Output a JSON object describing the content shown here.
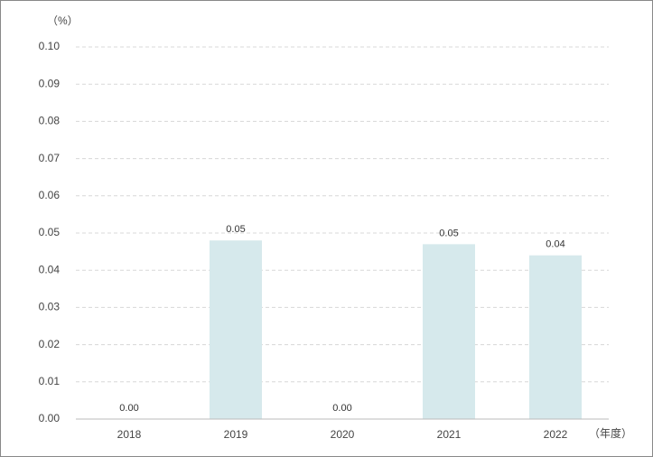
{
  "chart_data": {
    "type": "bar",
    "y_label": "（%）",
    "x_label": "（年度）",
    "categories": [
      "2018",
      "2019",
      "2020",
      "2021",
      "2022"
    ],
    "values": [
      0,
      0.048,
      0,
      0.047,
      0.044
    ],
    "value_labels": [
      "0.00",
      "0.05",
      "0.00",
      "0.05",
      "0.04"
    ],
    "color": "#d6e9ec",
    "ylim": [
      0,
      0.1
    ],
    "yticks": [
      {
        "value": 0,
        "label": "0.00"
      },
      {
        "value": 0.01,
        "label": "0.01"
      },
      {
        "value": 0.02,
        "label": "0.02"
      },
      {
        "value": 0.03,
        "label": "0.03"
      },
      {
        "value": 0.04,
        "label": "0.04"
      },
      {
        "value": 0.05,
        "label": "0.05"
      },
      {
        "value": 0.06,
        "label": "0.06"
      },
      {
        "value": 0.07,
        "label": "0.07"
      },
      {
        "value": 0.08,
        "label": "0.08"
      },
      {
        "value": 0.09,
        "label": "0.09"
      },
      {
        "value": 0.1,
        "label": "0.10"
      }
    ],
    "grid": true
  }
}
